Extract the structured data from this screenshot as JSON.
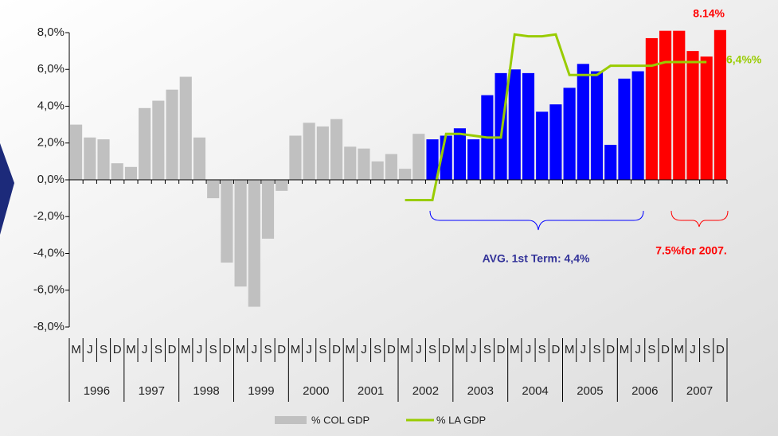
{
  "chart_data": {
    "type": "bar",
    "categories": [
      "M",
      "J",
      "S",
      "D",
      "M",
      "J",
      "S",
      "D",
      "M",
      "J",
      "S",
      "D",
      "M",
      "J",
      "S",
      "D",
      "M",
      "J",
      "S",
      "D",
      "M",
      "J",
      "S",
      "D",
      "M",
      "J",
      "S",
      "D",
      "M",
      "J",
      "S",
      "D",
      "M",
      "J",
      "S",
      "D",
      "M",
      "J",
      "S",
      "D",
      "M",
      "J",
      "S",
      "D",
      "M",
      "J",
      "S",
      "D"
    ],
    "years": [
      "1996",
      "1997",
      "1998",
      "1999",
      "2000",
      "2001",
      "2002",
      "2003",
      "2004",
      "2005",
      "2006",
      "2007"
    ],
    "series": [
      {
        "name": "% COL GDP",
        "color": "#c0c0c0",
        "colors": [
          "#c0c0c0",
          "#c0c0c0",
          "#c0c0c0",
          "#c0c0c0",
          "#c0c0c0",
          "#c0c0c0",
          "#c0c0c0",
          "#c0c0c0",
          "#c0c0c0",
          "#c0c0c0",
          "#c0c0c0",
          "#c0c0c0",
          "#c0c0c0",
          "#c0c0c0",
          "#c0c0c0",
          "#c0c0c0",
          "#c0c0c0",
          "#c0c0c0",
          "#c0c0c0",
          "#c0c0c0",
          "#c0c0c0",
          "#c0c0c0",
          "#c0c0c0",
          "#c0c0c0",
          "#c0c0c0",
          "#c0c0c0",
          "#0000ff",
          "#0000ff",
          "#0000ff",
          "#0000ff",
          "#0000ff",
          "#0000ff",
          "#0000ff",
          "#0000ff",
          "#0000ff",
          "#0000ff",
          "#0000ff",
          "#0000ff",
          "#0000ff",
          "#0000ff",
          "#0000ff",
          "#0000ff",
          "#ff0000",
          "#ff0000",
          "#ff0000",
          "#ff0000",
          "#ff0000",
          "#ff0000"
        ],
        "values": [
          3.0,
          2.3,
          2.2,
          0.9,
          0.7,
          3.9,
          4.3,
          4.9,
          5.6,
          2.3,
          -1.0,
          -4.5,
          -5.8,
          -6.9,
          -3.2,
          -0.6,
          2.4,
          3.1,
          2.9,
          3.3,
          1.8,
          1.7,
          1.0,
          1.4,
          0.6,
          2.5,
          2.2,
          2.4,
          2.8,
          2.2,
          4.6,
          5.8,
          6.0,
          5.8,
          3.7,
          4.1,
          5.0,
          6.3,
          5.9,
          1.9,
          5.5,
          5.9,
          7.7,
          8.1,
          8.1,
          7.0,
          6.7,
          8.14
        ]
      },
      {
        "name": "% LA GDP",
        "color": "#99cc00",
        "kind": "line",
        "values": [
          null,
          null,
          null,
          null,
          null,
          null,
          null,
          null,
          null,
          null,
          null,
          null,
          null,
          null,
          null,
          null,
          null,
          null,
          null,
          null,
          null,
          null,
          null,
          null,
          -1.1,
          -1.1,
          -1.1,
          2.5,
          2.5,
          2.4,
          2.3,
          2.3,
          7.9,
          7.8,
          7.8,
          7.9,
          5.7,
          5.7,
          5.7,
          6.2,
          6.2,
          6.2,
          6.2,
          6.4,
          6.4,
          6.4,
          6.4,
          null
        ]
      }
    ],
    "ylim": [
      -8,
      8
    ],
    "yticks": [
      {
        "value": 8,
        "label": "8,0%"
      },
      {
        "value": 6,
        "label": "6,0%"
      },
      {
        "value": 4,
        "label": "4,0%"
      },
      {
        "value": 2,
        "label": "2,0%"
      },
      {
        "value": 0,
        "label": "0,0%"
      },
      {
        "value": -2,
        "label": "-2,0%"
      },
      {
        "value": -4,
        "label": "-4,0%"
      },
      {
        "value": -6,
        "label": "-6,0%"
      },
      {
        "value": -8,
        "label": "-8,0%"
      }
    ],
    "annotations": [
      "8.14%",
      "6,4%%",
      "AVG. 1st Term: 4,4%",
      "7.5%for 2007."
    ],
    "legend": "bottom"
  }
}
